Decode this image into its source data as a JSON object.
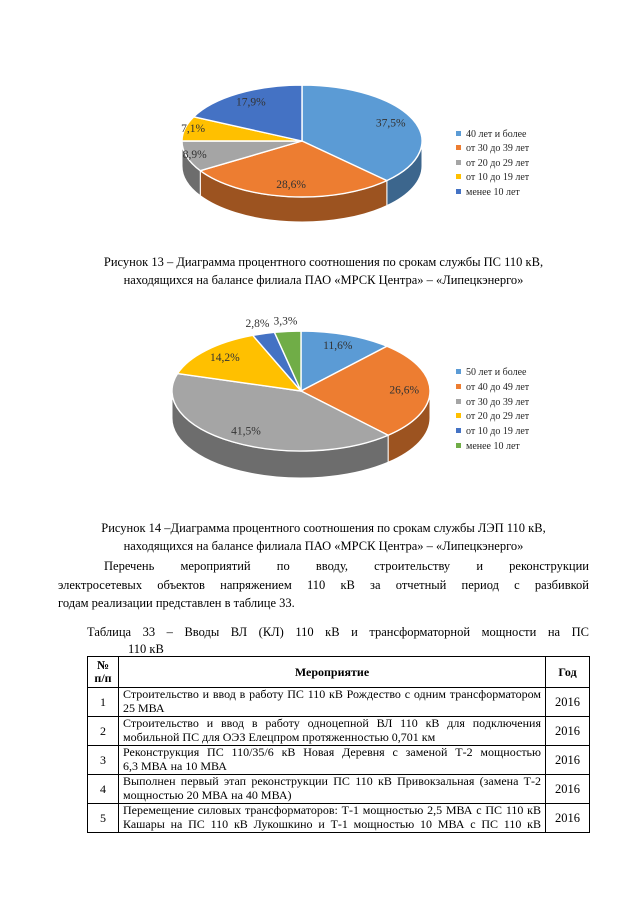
{
  "document": {
    "figure13": {
      "caption_lines": [
        "Рисунок 13 – Диаграмма процентного соотношения по срокам службы ПС 110 кВ,",
        "находящихся на балансе филиала ПАО «МРСК Центра» – «Липецкэнерго»"
      ]
    },
    "figure14": {
      "caption_lines": [
        "Рисунок 14 –Диаграмма процентного соотношения по срокам службы ЛЭП 110 кВ,",
        "находящихся на балансе филиала ПАО «МРСК Центра» – «Липецкэнерго»"
      ]
    },
    "paragraph": {
      "lines": [
        "Перечень мероприятий по вводу, строительству и реконструкции",
        "электросетевых объектов напряжением 110 кВ за отчетный период с разбивкой",
        "годам реализации представлен в таблице 33."
      ]
    },
    "table33": {
      "caption_lines": [
        "Таблица 33 – Вводы ВЛ (КЛ) 110 кВ и трансформаторной мощности на ПС",
        "110 кВ"
      ],
      "headers": {
        "num_line1": "№",
        "num_line2": "п/п",
        "activity": "Мероприятие",
        "year": "Год"
      },
      "rows": [
        {
          "num": "1",
          "lines": [
            "Строительство и ввод в работу ПС 110 кВ Рождество с одним трансформатором",
            "25 МВА"
          ],
          "year": "2016",
          "last_line_justified": false
        },
        {
          "num": "2",
          "lines": [
            "Строительство и ввод в работу одноцепной ВЛ 110 кВ для подключения",
            "мобильной ПС для ОЭЗ Елецпром протяженностью 0,701 км"
          ],
          "year": "2016",
          "last_line_justified": false
        },
        {
          "num": "3",
          "lines": [
            "Реконструкция ПС 110/35/6 кВ Новая Деревня с заменой Т-2 мощностью",
            "6,3 МВА на 10 МВА"
          ],
          "year": "2016",
          "last_line_justified": false
        },
        {
          "num": "4",
          "lines": [
            "Выполнен первый этап реконструкции ПС 110 кВ Привокзальная (замена Т-2",
            "мощностью 20 МВА на 40 МВА)"
          ],
          "year": "2016",
          "last_line_justified": false
        },
        {
          "num": "5",
          "lines": [
            "Перемещение силовых трансформаторов: Т-1 мощностью 2,5 МВА с ПС 110 кВ",
            "Кашары на ПС 110 кВ Лукошкино и Т-1 мощностью 10 МВА с ПС 110 кВ"
          ],
          "year": "2016",
          "last_line_justified": true
        }
      ]
    }
  },
  "chart_data": [
    {
      "type": "pie",
      "style": "3d",
      "figure": "Рисунок 13",
      "labels": [
        "40 лет и более",
        "от 30 до 39 лет",
        "от 20 до 29 лет",
        "от 10 до 19 лет",
        "менее 10 лет"
      ],
      "values": [
        37.5,
        28.6,
        8.9,
        7.1,
        17.9
      ],
      "value_labels": [
        "37,5%",
        "28,6%",
        "8,9%",
        "7,1%",
        "17,9%"
      ],
      "colors": [
        "#5B9BD5",
        "#ED7D31",
        "#A5A5A5",
        "#FFC000",
        "#4472C4"
      ],
      "legend_position": "right",
      "start_angle_deg": 0,
      "direction": "clockwise"
    },
    {
      "type": "pie",
      "style": "3d",
      "figure": "Рисунок 14",
      "labels": [
        "50 лет и более",
        "от 40 до 49 лет",
        "от 30 до 39 лет",
        "от 20 до 29 лет",
        "от 10 до 19 лет",
        "менее 10 лет"
      ],
      "values": [
        11.6,
        26.6,
        41.5,
        14.2,
        2.8,
        3.3
      ],
      "value_labels": [
        "11,6%",
        "26,6%",
        "41,5%",
        "14,2%",
        "2,8%",
        "3,3%"
      ],
      "colors": [
        "#5B9BD5",
        "#ED7D31",
        "#A5A5A5",
        "#FFC000",
        "#4472C4",
        "#70AD47"
      ],
      "legend_position": "right",
      "start_angle_deg": 0,
      "direction": "clockwise"
    }
  ]
}
